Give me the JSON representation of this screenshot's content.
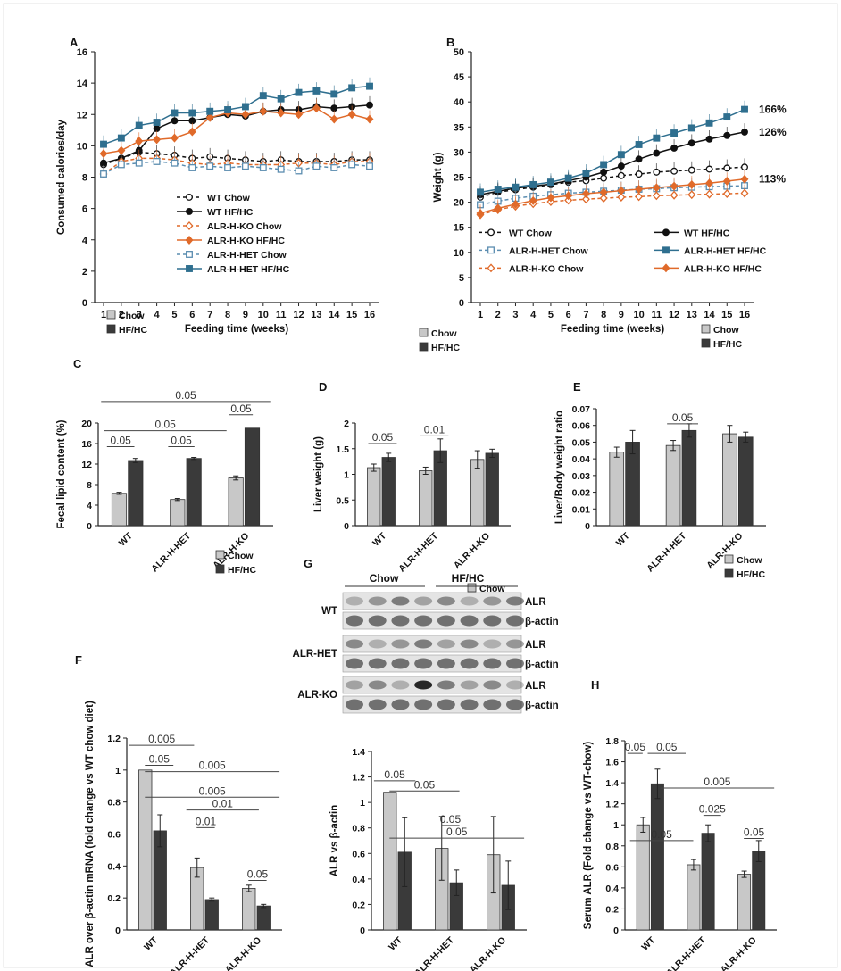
{
  "colors": {
    "wt": "#111111",
    "ko": "#e06a2a",
    "het": "#5b8db0",
    "het_dark": "#2f6f8f",
    "chow_bar": "#c8c8c8",
    "hfhc_bar": "#3a3a3a",
    "axis": "#222222"
  },
  "chart_data": [
    {
      "id": "A",
      "panel_label": "A",
      "type": "line",
      "xlabel": "Feeding time (weeks)",
      "ylabel": "Consumed calories/day",
      "x": [
        1,
        2,
        3,
        4,
        5,
        6,
        7,
        8,
        9,
        10,
        11,
        12,
        13,
        14,
        15,
        16
      ],
      "ylim": [
        0,
        16
      ],
      "yticks": [
        0,
        2,
        4,
        6,
        8,
        10,
        12,
        14,
        16
      ],
      "legend_placement": "center",
      "series": [
        {
          "name": "WT Chow",
          "color": "#111111",
          "dashed": true,
          "marker": "open-circle",
          "values": [
            8.8,
            9.2,
            9.6,
            9.5,
            9.4,
            9.2,
            9.3,
            9.2,
            9.1,
            9.0,
            9.1,
            9.0,
            9.0,
            9.0,
            9.1,
            9.1
          ]
        },
        {
          "name": "WT HF/HC",
          "color": "#111111",
          "dashed": false,
          "marker": "circle",
          "values": [
            8.9,
            9.2,
            9.7,
            11.1,
            11.6,
            11.6,
            11.8,
            12.0,
            11.9,
            12.2,
            12.3,
            12.3,
            12.5,
            12.4,
            12.5,
            12.6
          ]
        },
        {
          "name": "ALR-H-KO Chow",
          "color": "#e06a2a",
          "dashed": true,
          "marker": "open-diamond",
          "values": [
            8.2,
            9.0,
            9.2,
            9.2,
            9.1,
            8.9,
            8.8,
            8.9,
            8.8,
            8.8,
            8.8,
            8.9,
            8.9,
            8.8,
            9.0,
            9.0
          ]
        },
        {
          "name": "ALR-H-KO HF/HC",
          "color": "#e06a2a",
          "dashed": false,
          "marker": "diamond",
          "values": [
            9.5,
            9.7,
            10.3,
            10.4,
            10.5,
            10.9,
            11.8,
            12.1,
            12.0,
            12.2,
            12.1,
            12.0,
            12.4,
            11.7,
            12.0,
            11.7
          ]
        },
        {
          "name": "ALR-H-HET Chow",
          "color": "#5b8db0",
          "dashed": true,
          "marker": "open-square",
          "values": [
            8.2,
            8.8,
            8.9,
            9.0,
            8.9,
            8.6,
            8.7,
            8.6,
            8.7,
            8.6,
            8.5,
            8.4,
            8.7,
            8.6,
            8.8,
            8.7
          ]
        },
        {
          "name": "ALR-H-HET HF/HC",
          "color": "#2f6f8f",
          "dashed": false,
          "marker": "square",
          "values": [
            10.1,
            10.5,
            11.3,
            11.5,
            12.1,
            12.1,
            12.2,
            12.3,
            12.5,
            13.2,
            13.0,
            13.4,
            13.5,
            13.3,
            13.7,
            13.8
          ]
        }
      ]
    },
    {
      "id": "B",
      "panel_label": "B",
      "type": "line",
      "xlabel": "Feeding time (weeks)",
      "ylabel": "Weight (g)",
      "x": [
        1,
        2,
        3,
        4,
        5,
        6,
        7,
        8,
        9,
        10,
        11,
        12,
        13,
        14,
        15,
        16
      ],
      "ylim": [
        0,
        50
      ],
      "yticks": [
        0,
        5,
        10,
        15,
        20,
        25,
        30,
        35,
        40,
        45,
        50
      ],
      "legend_placement": "bottom",
      "annotations": [
        "166%",
        "126%",
        "113%"
      ],
      "series": [
        {
          "name": "WT Chow",
          "color": "#111111",
          "dashed": true,
          "marker": "open-circle",
          "values": [
            21.0,
            22.0,
            22.5,
            23.0,
            23.5,
            24.0,
            24.3,
            24.8,
            25.3,
            25.6,
            26.0,
            26.2,
            26.4,
            26.6,
            26.8,
            27.0
          ]
        },
        {
          "name": "WT HF/HC",
          "color": "#111111",
          "dashed": false,
          "marker": "circle",
          "values": [
            21.5,
            22.2,
            22.8,
            23.2,
            23.6,
            24.3,
            25.0,
            26.0,
            27.2,
            28.6,
            29.8,
            30.8,
            31.8,
            32.6,
            33.3,
            34.0
          ]
        },
        {
          "name": "ALR-H-HET Chow",
          "color": "#5b8db0",
          "dashed": true,
          "marker": "open-square",
          "values": [
            19.5,
            20.2,
            20.8,
            21.2,
            21.5,
            21.8,
            22.0,
            22.2,
            22.4,
            22.6,
            22.7,
            22.9,
            23.0,
            23.1,
            23.2,
            23.3
          ]
        },
        {
          "name": "ALR-H-HET HF/HC",
          "color": "#2f6f8f",
          "dashed": false,
          "marker": "square",
          "values": [
            22.0,
            22.6,
            23.0,
            23.5,
            24.0,
            24.8,
            25.8,
            27.5,
            29.5,
            31.5,
            32.8,
            33.8,
            34.8,
            35.8,
            37.0,
            38.5
          ]
        },
        {
          "name": "ALR-H-KO Chow",
          "color": "#e06a2a",
          "dashed": true,
          "marker": "open-diamond",
          "values": [
            17.5,
            18.5,
            19.2,
            19.7,
            20.1,
            20.4,
            20.6,
            20.8,
            21.0,
            21.1,
            21.3,
            21.4,
            21.5,
            21.6,
            21.7,
            21.8
          ]
        },
        {
          "name": "ALR-H-KO HF/HC",
          "color": "#e06a2a",
          "dashed": false,
          "marker": "diamond",
          "values": [
            17.8,
            18.8,
            19.6,
            20.3,
            20.9,
            21.3,
            21.7,
            22.0,
            22.3,
            22.6,
            22.9,
            23.2,
            23.5,
            23.8,
            24.2,
            24.6
          ]
        }
      ]
    },
    {
      "id": "C",
      "panel_label": "C",
      "type": "bar",
      "categories": [
        "WT",
        "ALR-H-HET",
        "ALR-H-KO"
      ],
      "ylabel": "Fecal lipid content (%)",
      "ylim": [
        0,
        20
      ],
      "yticks": [
        0,
        4,
        8,
        12,
        16,
        20
      ],
      "series": [
        {
          "name": "Chow",
          "values": [
            6.3,
            5.1,
            9.3
          ],
          "errors": [
            0.2,
            0.2,
            0.4
          ]
        },
        {
          "name": "HF/HC",
          "values": [
            12.7,
            13.1,
            19.0
          ],
          "errors": [
            0.4,
            0.2,
            0.0
          ]
        }
      ],
      "significance": [
        "0.05",
        "0.05",
        "0.05",
        "0.05",
        "0.05"
      ]
    },
    {
      "id": "D",
      "panel_label": "D",
      "type": "bar",
      "categories": [
        "WT",
        "ALR-H-HET",
        "ALR-H-KO"
      ],
      "ylabel": "Liver weight (g)",
      "ylim": [
        0,
        2
      ],
      "yticks": [
        "0",
        "0.5",
        "1",
        "1.5",
        "2"
      ],
      "series": [
        {
          "name": "Chow",
          "values": [
            1.13,
            1.07,
            1.29
          ],
          "errors": [
            0.07,
            0.07,
            0.17
          ]
        },
        {
          "name": "HF/HC",
          "values": [
            1.33,
            1.46,
            1.41
          ],
          "errors": [
            0.08,
            0.23,
            0.08
          ]
        }
      ],
      "significance": [
        "0.05",
        "0.01"
      ]
    },
    {
      "id": "E",
      "panel_label": "E",
      "type": "bar",
      "categories": [
        "WT",
        "ALR-H-HET",
        "ALR-H-KO"
      ],
      "ylabel": "Liver/Body weight ratio",
      "ylim": [
        0,
        0.07
      ],
      "yticks": [
        "0",
        "0.01",
        "0.02",
        "0.03",
        "0.04",
        "0.05",
        "0.06",
        "0.07"
      ],
      "series": [
        {
          "name": "Chow",
          "values": [
            0.044,
            0.048,
            0.055
          ],
          "errors": [
            0.003,
            0.003,
            0.005
          ]
        },
        {
          "name": "HF/HC",
          "values": [
            0.05,
            0.057,
            0.053
          ],
          "errors": [
            0.007,
            0.004,
            0.003
          ]
        }
      ],
      "significance": [
        "0.05"
      ]
    },
    {
      "id": "F",
      "panel_label": "F",
      "type": "bar",
      "categories": [
        "WT",
        "ALR-H-HET",
        "ALR-H-KO"
      ],
      "ylabel": "ALR over β-actin mRNA (fold change vs WT chow diet)",
      "ylim": [
        0,
        1.2
      ],
      "yticks": [
        "0",
        "0.2",
        "0.4",
        "0.6",
        "0.8",
        "1",
        "1.2"
      ],
      "series": [
        {
          "name": "Chow",
          "values": [
            1.0,
            0.39,
            0.26
          ],
          "errors": [
            0.0,
            0.06,
            0.02
          ]
        },
        {
          "name": "HF/HC",
          "values": [
            0.62,
            0.19,
            0.15
          ],
          "errors": [
            0.1,
            0.01,
            0.01
          ]
        }
      ],
      "significance": [
        "0.005",
        "0.05",
        "0.005",
        "0.005",
        "0.01",
        "0.01",
        "0.05"
      ]
    },
    {
      "id": "G",
      "panel_label": "G",
      "type": "bar",
      "categories": [
        "WT",
        "ALR-H-HET",
        "ALR-H-KO"
      ],
      "ylabel": "ALR vs β-actin",
      "ylim": [
        0,
        1.4
      ],
      "yticks": [
        "0",
        "0.2",
        "0.4",
        "0.6",
        "0.8",
        "1",
        "1.2",
        "1.4"
      ],
      "series": [
        {
          "name": "Chow",
          "values": [
            1.08,
            0.64,
            0.59
          ],
          "errors": [
            0.0,
            0.25,
            0.3
          ]
        },
        {
          "name": "HF/HC",
          "values": [
            0.61,
            0.37,
            0.35
          ],
          "errors": [
            0.27,
            0.1,
            0.19
          ]
        }
      ],
      "significance": [
        "0.05",
        "0.05",
        "0.05",
        "0.05"
      ],
      "blot": {
        "header": [
          "Chow",
          "HF/HC"
        ],
        "rows": [
          "WT",
          "ALR-HET",
          "ALR-KO"
        ],
        "bands": [
          "ALR",
          "β-actin"
        ]
      }
    },
    {
      "id": "H",
      "panel_label": "H",
      "type": "bar",
      "categories": [
        "WT",
        "ALR-H-HET",
        "ALR-H-KO"
      ],
      "ylabel": "Serum ALR (Fold change vs WT-chow)",
      "ylim": [
        0,
        1.8
      ],
      "yticks": [
        "0",
        "0.2",
        "0.4",
        "0.6",
        "0.8",
        "1",
        "1.2",
        "1.4",
        "1.6",
        "1.8"
      ],
      "series": [
        {
          "name": "Chow",
          "values": [
            1.0,
            0.62,
            0.53
          ],
          "errors": [
            0.07,
            0.05,
            0.03
          ]
        },
        {
          "name": "HF/HC",
          "values": [
            1.39,
            0.92,
            0.75
          ],
          "errors": [
            0.14,
            0.08,
            0.1
          ]
        }
      ],
      "significance": [
        "0.05",
        "0.05",
        "0.005",
        "0.025",
        "0.05",
        "0.05"
      ]
    }
  ]
}
